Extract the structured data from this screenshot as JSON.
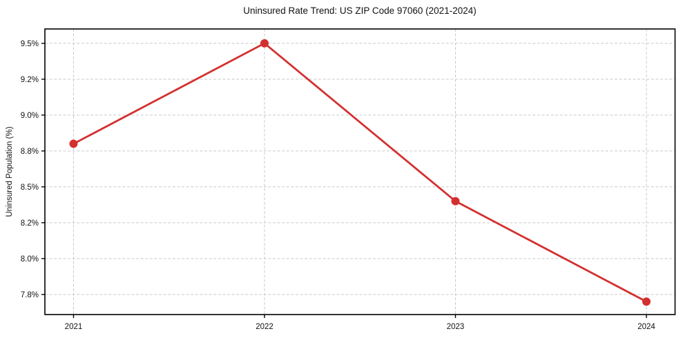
{
  "figure": {
    "background": "#ffffff"
  },
  "chart_data": {
    "type": "line",
    "title": "Uninsured Rate Trend: US ZIP Code 97060 (2021-2024)",
    "xlabel": "",
    "ylabel": "Uninsured Population (%)",
    "x": [
      2021,
      2022,
      2023,
      2024
    ],
    "xtick_labels": [
      "2021",
      "2022",
      "2023",
      "2024"
    ],
    "series": [
      {
        "name": "Uninsured rate",
        "values": [
          8.8,
          9.5,
          8.4,
          7.7
        ],
        "color": "#d32f2f",
        "marker": "circle"
      }
    ],
    "yticks": [
      7.75,
      8.0,
      8.25,
      8.5,
      8.75,
      9.0,
      9.25,
      9.5
    ],
    "ytick_labels": [
      "7.8%",
      "8.0%",
      "8.2%",
      "8.5%",
      "8.8%",
      "9.0%",
      "9.2%",
      "9.5%"
    ],
    "ylim": [
      7.61,
      9.6
    ],
    "xlim": [
      2020.85,
      2024.15
    ],
    "grid": true,
    "grid_color": "#c9c9c9",
    "grid_style": "dashed",
    "axis_color": "#000000",
    "tick_label_color": "#111111",
    "legend": "none"
  }
}
